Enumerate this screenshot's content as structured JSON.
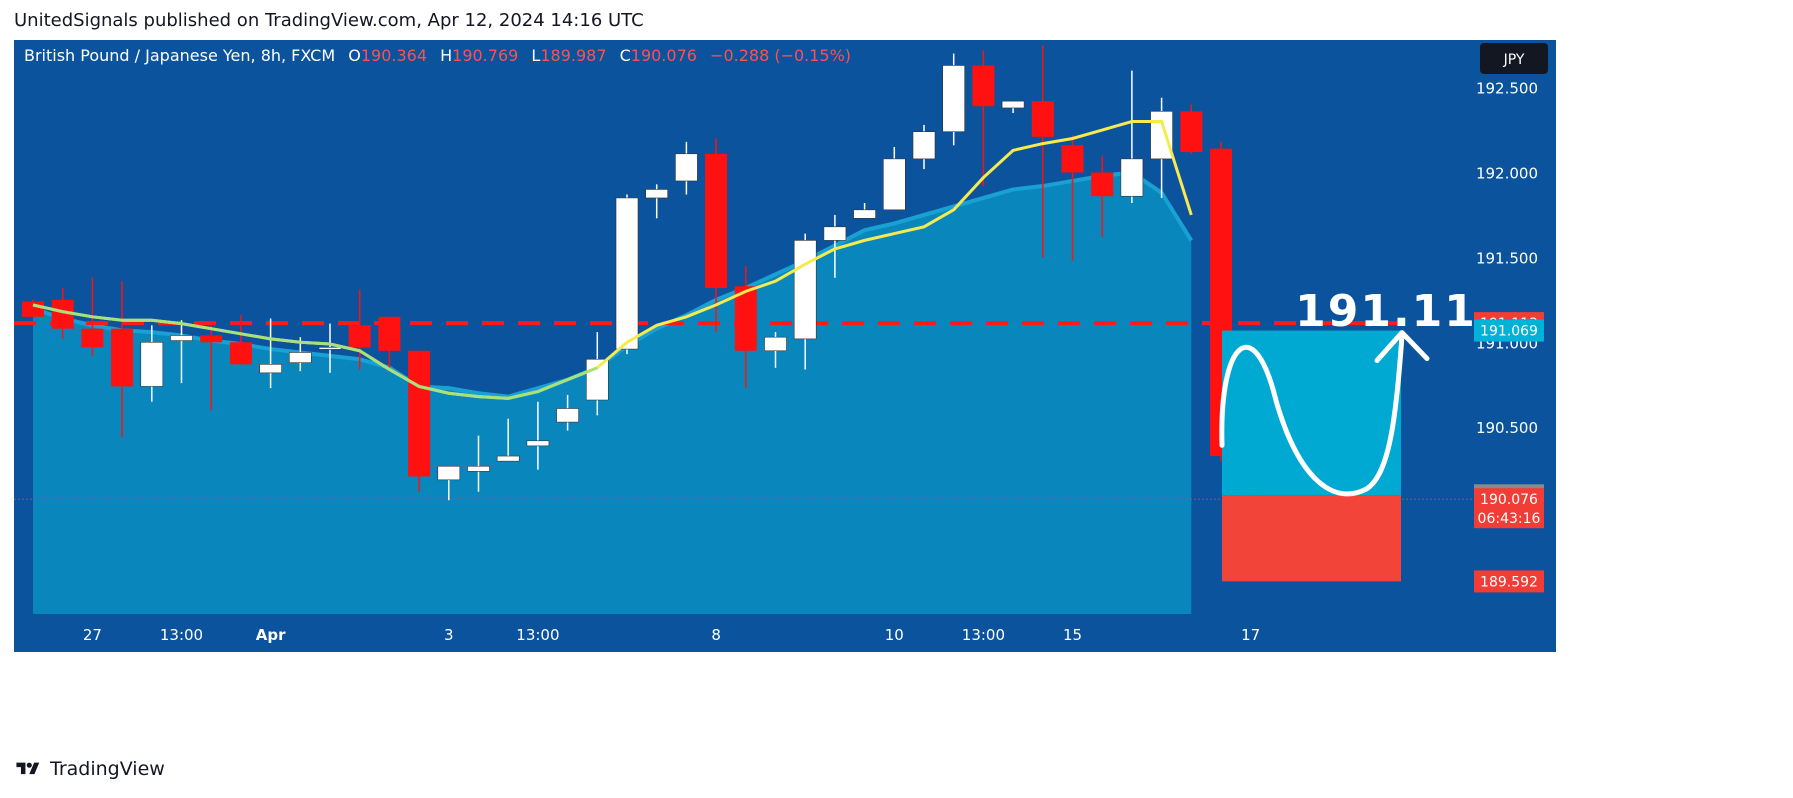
{
  "publisher": "UnitedSignals published on TradingView.com, Apr 12, 2024 14:16 UTC",
  "footer_brand": "TradingView",
  "currency_button": "JPY",
  "header": {
    "symbol": "British Pound / Japanese Yen, 8h, FXCM",
    "o_label": "O",
    "o_value": "190.364",
    "h_label": "H",
    "h_value": "190.769",
    "l_label": "L",
    "l_value": "189.987",
    "c_label": "C",
    "c_value": "190.076",
    "change": "−0.288 (−0.15%)"
  },
  "annotation_price": "191.11",
  "price_labels": {
    "resistance": "191.113",
    "target": "191.069",
    "entry": "190.099",
    "last": "190.076",
    "countdown": "06:43:16",
    "stop": "189.592"
  },
  "chart_data": {
    "type": "candlestick",
    "ylim": [
      189.4,
      192.78
    ],
    "yticks": [
      {
        "value": 192.5,
        "label": "192.500"
      },
      {
        "value": 192.0,
        "label": "192.000"
      },
      {
        "value": 191.5,
        "label": "191.500"
      },
      {
        "value": 191.0,
        "label": "191.000"
      },
      {
        "value": 190.5,
        "label": "190.500"
      }
    ],
    "xticks": [
      {
        "index": 2,
        "label": "27"
      },
      {
        "index": 5,
        "label": "13:00"
      },
      {
        "index": 8,
        "label": "Apr"
      },
      {
        "index": 14,
        "label": "3"
      },
      {
        "index": 17,
        "label": "13:00"
      },
      {
        "index": 23,
        "label": "8"
      },
      {
        "index": 29,
        "label": "10"
      },
      {
        "index": 32,
        "label": "13:00"
      },
      {
        "index": 35,
        "label": "15"
      },
      {
        "index": 41,
        "label": "17"
      }
    ],
    "candles": [
      {
        "o": 191.24,
        "h": 191.25,
        "l": 191.15,
        "c": 191.15
      },
      {
        "o": 191.25,
        "h": 191.32,
        "l": 191.02,
        "c": 191.08
      },
      {
        "o": 191.08,
        "h": 191.38,
        "l": 190.92,
        "c": 190.97
      },
      {
        "o": 191.08,
        "h": 191.36,
        "l": 190.44,
        "c": 190.74
      },
      {
        "o": 190.74,
        "h": 191.1,
        "l": 190.65,
        "c": 191.0
      },
      {
        "o": 191.01,
        "h": 191.13,
        "l": 190.76,
        "c": 191.04
      },
      {
        "o": 191.04,
        "h": 191.1,
        "l": 190.6,
        "c": 191.0
      },
      {
        "o": 191.0,
        "h": 191.16,
        "l": 190.87,
        "c": 190.87
      },
      {
        "o": 190.82,
        "h": 191.14,
        "l": 190.73,
        "c": 190.87
      },
      {
        "o": 190.88,
        "h": 191.03,
        "l": 190.83,
        "c": 190.94
      },
      {
        "o": 190.96,
        "h": 191.11,
        "l": 190.82,
        "c": 190.97
      },
      {
        "o": 191.1,
        "h": 191.31,
        "l": 190.84,
        "c": 190.97
      },
      {
        "o": 191.15,
        "h": 191.15,
        "l": 190.85,
        "c": 190.95
      },
      {
        "o": 190.95,
        "h": 190.95,
        "l": 190.12,
        "c": 190.21
      },
      {
        "o": 190.19,
        "h": 190.27,
        "l": 190.07,
        "c": 190.27
      },
      {
        "o": 190.24,
        "h": 190.45,
        "l": 190.12,
        "c": 190.27
      },
      {
        "o": 190.3,
        "h": 190.55,
        "l": 190.3,
        "c": 190.33
      },
      {
        "o": 190.39,
        "h": 190.65,
        "l": 190.25,
        "c": 190.42
      },
      {
        "o": 190.53,
        "h": 190.69,
        "l": 190.48,
        "c": 190.61
      },
      {
        "o": 190.66,
        "h": 191.06,
        "l": 190.57,
        "c": 190.9
      },
      {
        "o": 190.96,
        "h": 191.87,
        "l": 190.93,
        "c": 191.85
      },
      {
        "o": 191.85,
        "h": 191.93,
        "l": 191.73,
        "c": 191.9
      },
      {
        "o": 191.95,
        "h": 192.18,
        "l": 191.87,
        "c": 192.11
      },
      {
        "o": 192.11,
        "h": 192.2,
        "l": 191.06,
        "c": 191.32
      },
      {
        "o": 191.33,
        "h": 191.45,
        "l": 190.73,
        "c": 190.95
      },
      {
        "o": 190.95,
        "h": 191.06,
        "l": 190.85,
        "c": 191.03
      },
      {
        "o": 191.02,
        "h": 191.64,
        "l": 190.84,
        "c": 191.6
      },
      {
        "o": 191.6,
        "h": 191.75,
        "l": 191.38,
        "c": 191.68
      },
      {
        "o": 191.73,
        "h": 191.82,
        "l": 191.75,
        "c": 191.78
      },
      {
        "o": 191.78,
        "h": 192.15,
        "l": 191.81,
        "c": 192.08
      },
      {
        "o": 192.08,
        "h": 192.28,
        "l": 192.02,
        "c": 192.24
      },
      {
        "o": 192.24,
        "h": 192.7,
        "l": 192.16,
        "c": 192.63
      },
      {
        "o": 192.63,
        "h": 192.72,
        "l": 191.92,
        "c": 192.39
      },
      {
        "o": 192.38,
        "h": 192.42,
        "l": 192.35,
        "c": 192.42
      },
      {
        "o": 192.42,
        "h": 192.75,
        "l": 191.5,
        "c": 192.21
      },
      {
        "o": 192.16,
        "h": 192.22,
        "l": 191.48,
        "c": 192.0
      },
      {
        "o": 192.0,
        "h": 192.1,
        "l": 191.62,
        "c": 191.86
      },
      {
        "o": 191.86,
        "h": 192.6,
        "l": 191.82,
        "c": 192.08
      },
      {
        "o": 192.08,
        "h": 192.44,
        "l": 191.85,
        "c": 192.36
      },
      {
        "o": 192.36,
        "h": 192.4,
        "l": 192.11,
        "c": 192.12
      },
      {
        "o": 192.14,
        "h": 192.18,
        "l": 190.3,
        "c": 190.33
      },
      {
        "o": 190.33,
        "h": 190.72,
        "l": 190.0,
        "c": 190.076
      }
    ],
    "ma_yellow": [
      191.22,
      191.18,
      191.15,
      191.13,
      191.13,
      191.11,
      191.08,
      191.05,
      191.02,
      191.0,
      190.99,
      190.95,
      190.84,
      190.74,
      190.7,
      190.68,
      190.67,
      190.71,
      190.78,
      190.85,
      191.0,
      191.1,
      191.15,
      191.22,
      191.3,
      191.36,
      191.46,
      191.55,
      191.6,
      191.64,
      191.68,
      191.78,
      191.97,
      192.13,
      192.17,
      192.2,
      192.25,
      192.3,
      192.3,
      191.75
    ],
    "ma_fill": [
      191.2,
      191.14,
      191.1,
      191.07,
      191.06,
      191.04,
      191.01,
      190.99,
      190.96,
      190.94,
      190.92,
      190.9,
      190.85,
      190.74,
      190.73,
      190.7,
      190.68,
      190.73,
      190.78,
      190.85,
      190.98,
      191.08,
      191.16,
      191.25,
      191.32,
      191.4,
      191.48,
      191.57,
      191.66,
      191.7,
      191.75,
      191.8,
      191.85,
      191.9,
      191.92,
      191.95,
      191.98,
      192.0,
      191.88,
      191.6
    ],
    "resistance_level": 191.113,
    "projection": {
      "entry": 190.099,
      "target": 191.069,
      "stop": 189.592
    }
  },
  "colors": {
    "background": "#ffffff",
    "chart_bg": "#0b539d",
    "area_fill": "#0987bd",
    "area_line": "#19a1d4",
    "ma_yellow": "#f7ea4f",
    "ma_green": "#a7e07c",
    "bear": "#ff1111",
    "bull": "#ffffff",
    "resistance": "#ff1a1a",
    "target_box": "#00a9d2",
    "stop_box": "#f3443a",
    "label_red": "#f23c36",
    "label_cyan": "#00b1d8",
    "label_gray": "#8a8a8a",
    "header_red": "#ff5050"
  }
}
